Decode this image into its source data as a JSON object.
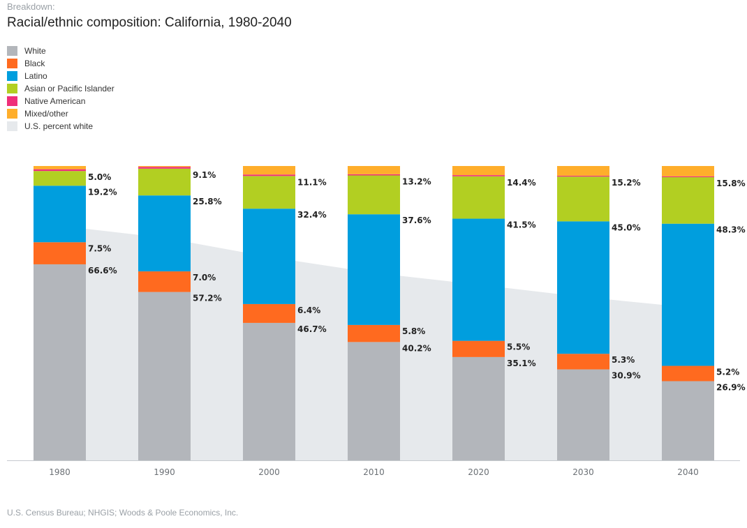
{
  "header": {
    "kicker": "Breakdown:",
    "title": "Racial/ethnic composition: California, 1980-2040"
  },
  "source": "U.S. Census Bureau; NHGIS; Woods & Poole Economics, Inc.",
  "legend": [
    {
      "label": "White",
      "color": "#b3b6bb"
    },
    {
      "label": "Black",
      "color": "#ff6a1f"
    },
    {
      "label": "Latino",
      "color": "#009ede"
    },
    {
      "label": "Asian or Pacific Islander",
      "color": "#b2cf22"
    },
    {
      "label": "Native American",
      "color": "#ef2f7a"
    },
    {
      "label": "Mixed/other",
      "color": "#ffae2b"
    },
    {
      "label": "U.S. percent white",
      "color": "#e6e9ec"
    }
  ],
  "chart_data": {
    "type": "bar",
    "stacked": true,
    "categories": [
      "1980",
      "1990",
      "2000",
      "2010",
      "2020",
      "2030",
      "2040"
    ],
    "series": [
      {
        "name": "White",
        "color": "#b3b6bb",
        "values": [
          66.6,
          57.2,
          46.7,
          40.2,
          35.1,
          30.9,
          26.9
        ],
        "labels": [
          "66.6%",
          "57.2%",
          "46.7%",
          "40.2%",
          "35.1%",
          "30.9%",
          "26.9%"
        ]
      },
      {
        "name": "Black",
        "color": "#ff6a1f",
        "values": [
          7.5,
          7.0,
          6.4,
          5.8,
          5.5,
          5.3,
          5.2
        ],
        "labels": [
          "7.5%",
          "7.0%",
          "6.4%",
          "5.8%",
          "5.5%",
          "5.3%",
          "5.2%"
        ]
      },
      {
        "name": "Latino",
        "color": "#009ede",
        "values": [
          19.2,
          25.8,
          32.4,
          37.6,
          41.5,
          45.0,
          48.3
        ],
        "labels": [
          "19.2%",
          "25.8%",
          "32.4%",
          "37.6%",
          "41.5%",
          "45.0%",
          "48.3%"
        ]
      },
      {
        "name": "Asian or Pacific Islander",
        "color": "#b2cf22",
        "values": [
          5.0,
          9.1,
          11.1,
          13.2,
          14.4,
          15.2,
          15.8
        ],
        "labels": [
          "5.0%",
          "9.1%",
          "11.1%",
          "13.2%",
          "14.4%",
          "15.2%",
          "15.8%"
        ]
      },
      {
        "name": "Native American",
        "color": "#ef2f7a",
        "values": [
          0.6,
          0.6,
          0.5,
          0.4,
          0.4,
          0.3,
          0.3
        ]
      },
      {
        "name": "Mixed/other",
        "color": "#ffae2b",
        "values": [
          1.1,
          0.3,
          2.9,
          2.8,
          3.1,
          3.3,
          3.5
        ]
      }
    ],
    "area_series": {
      "name": "U.S. percent white",
      "color": "#e6e9ec",
      "values": [
        79.7,
        75.6,
        69.1,
        63.7,
        59.7,
        55.5,
        52.0
      ]
    },
    "ylim": [
      0,
      100
    ],
    "grid": false,
    "legend_position": "top-left"
  }
}
